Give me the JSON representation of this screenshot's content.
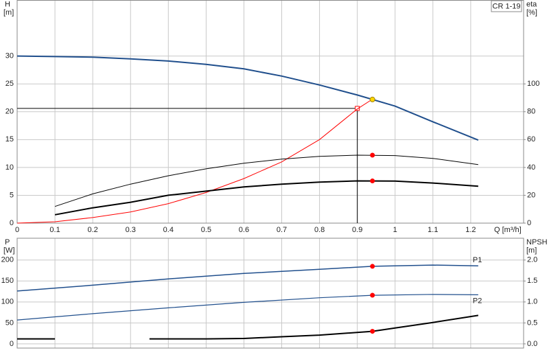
{
  "chart_data": [
    {
      "type": "line",
      "title": "CR 1-19",
      "ylabel": "H",
      "yunit": "[m]",
      "y2label": "eta",
      "y2unit": "[%]",
      "xlabel": "Q [m³/h]",
      "xlim": [
        0,
        1.34
      ],
      "xticks": [
        0,
        0.1,
        0.2,
        0.3,
        0.4,
        0.5,
        0.6,
        0.7,
        0.8,
        0.9,
        1,
        1.1,
        1.2
      ],
      "ylim": [
        0,
        40
      ],
      "yticks": [
        0,
        5,
        10,
        15,
        20,
        25,
        30
      ],
      "y2lim": [
        0,
        160
      ],
      "y2ticks": [
        0,
        20,
        40,
        60,
        80,
        100
      ],
      "grid": true,
      "duty_point": {
        "x": 0.9,
        "y": 20.6,
        "color": "#ff0000"
      },
      "series": [
        {
          "type": "line",
          "color": "#1f4e8c",
          "width": 2,
          "axis": "y",
          "x": [
            0,
            0.1,
            0.2,
            0.3,
            0.4,
            0.5,
            0.6,
            0.7,
            0.8,
            0.9,
            1,
            1.1,
            1.22
          ],
          "values": [
            30,
            29.9,
            29.8,
            29.5,
            29.1,
            28.5,
            27.7,
            26.4,
            24.8,
            23,
            21,
            18.2,
            14.9
          ]
        },
        {
          "type": "line",
          "color": "#ff0000",
          "width": 1,
          "axis": "y2",
          "x": [
            0,
            0.1,
            0.2,
            0.3,
            0.4,
            0.5,
            0.6,
            0.7,
            0.8,
            0.9,
            0.94
          ],
          "values": [
            0,
            1,
            4,
            8,
            14,
            22,
            32,
            44,
            60,
            82,
            89
          ]
        },
        {
          "type": "line",
          "color": "#000000",
          "width": 1,
          "axis": "y2",
          "x": [
            0.1,
            0.2,
            0.3,
            0.4,
            0.5,
            0.6,
            0.7,
            0.8,
            0.9,
            1,
            1.1,
            1.22
          ],
          "values": [
            12,
            21,
            28,
            34,
            39,
            43,
            46,
            48,
            48.8,
            48.5,
            46.5,
            42
          ]
        },
        {
          "type": "line",
          "color": "#000000",
          "width": 2,
          "axis": "y2",
          "x": [
            0.1,
            0.2,
            0.3,
            0.4,
            0.5,
            0.6,
            0.7,
            0.8,
            0.9,
            1,
            1.1,
            1.22
          ],
          "values": [
            6,
            11,
            15,
            20,
            23,
            26,
            28,
            29.5,
            30.3,
            30.2,
            28.8,
            26.5
          ]
        },
        {
          "type": "scatter",
          "color": "#ffd700",
          "axis": "y",
          "x": [
            0.94
          ],
          "values": [
            22.2
          ]
        },
        {
          "type": "scatter",
          "color": "#ff0000",
          "axis": "y2",
          "x": [
            0.94,
            0.94
          ],
          "values": [
            48.8,
            30.3
          ]
        }
      ]
    },
    {
      "type": "line",
      "ylabel": "P",
      "yunit": "[W]",
      "y2label": "NPSH",
      "y2unit": "[m]",
      "xlim": [
        0,
        1.34
      ],
      "xticks": [
        0,
        0.1,
        0.2,
        0.3,
        0.4,
        0.5,
        0.6,
        0.7,
        0.8,
        0.9,
        1,
        1.1,
        1.2
      ],
      "ylim": [
        -10,
        252
      ],
      "yticks": [
        0,
        50,
        100,
        150,
        200
      ],
      "y2lim": [
        -0.1,
        2.52
      ],
      "y2ticks": [
        {
          "value": 0,
          "label": "0.0"
        },
        0.5,
        {
          "value": 1,
          "label": "1.0"
        },
        1.5,
        {
          "value": 2,
          "label": "2.0"
        }
      ],
      "grid": true,
      "series": [
        {
          "type": "line",
          "name": "P1",
          "color": "#1f4e8c",
          "width": 1.5,
          "axis": "y",
          "x": [
            0,
            0.2,
            0.4,
            0.6,
            0.8,
            0.94,
            1.1,
            1.22
          ],
          "values": [
            126,
            140,
            155,
            168,
            178,
            185,
            188,
            186
          ]
        },
        {
          "type": "line",
          "name": "P2",
          "color": "#1f4e8c",
          "width": 1.2,
          "axis": "y",
          "x": [
            0,
            0.2,
            0.4,
            0.6,
            0.8,
            0.94,
            1.1,
            1.22
          ],
          "values": [
            57,
            72,
            86,
            99,
            110,
            116,
            118,
            117
          ]
        },
        {
          "type": "line",
          "color": "#000000",
          "width": 2,
          "axis": "y2",
          "x": [
            0,
            0.1,
            0.2,
            0.35,
            0.5,
            0.6,
            0.7,
            0.8,
            0.94,
            1,
            1.1,
            1.22
          ],
          "values": [
            0.12,
            0.12,
            null,
            0.12,
            0.12,
            0.13,
            0.17,
            0.21,
            0.3,
            0.38,
            0.51,
            0.68
          ]
        },
        {
          "type": "scatter",
          "color": "#ff0000",
          "axis": "y",
          "x": [
            0.94,
            0.94
          ],
          "values": [
            185,
            116
          ]
        },
        {
          "type": "scatter",
          "color": "#ff0000",
          "axis": "y2",
          "x": [
            0.94
          ],
          "values": [
            0.3
          ]
        }
      ]
    }
  ]
}
